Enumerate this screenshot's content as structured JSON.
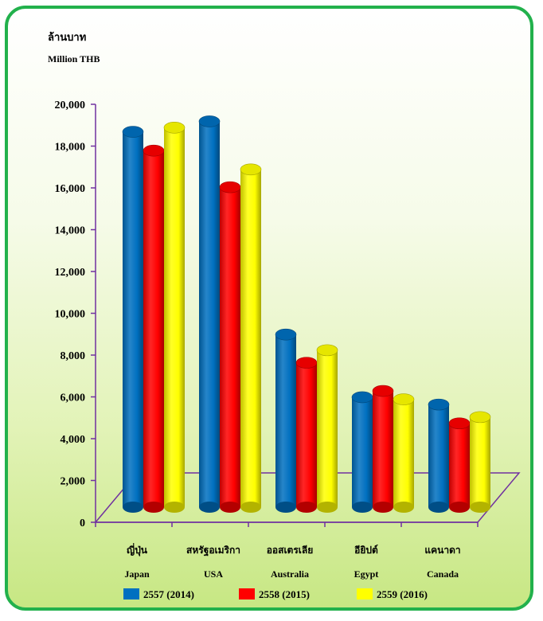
{
  "chart_data": {
    "type": "bar",
    "unit_label_th": "ล้านบาท",
    "unit_label_en": "Million THB",
    "categories": [
      {
        "th": "ญี่ปุ่น",
        "en": "Japan"
      },
      {
        "th": "สหรัฐอเมริกา",
        "en": "USA"
      },
      {
        "th": "ออสเตรเลีย",
        "en": "Australia"
      },
      {
        "th": "อียิปต์",
        "en": "Egypt"
      },
      {
        "th": "แคนาดา",
        "en": "Canada"
      }
    ],
    "series": [
      {
        "name": "2557  (2014)",
        "color": "#0070c0",
        "values": [
          18950,
          19450,
          9250,
          6250,
          5900
        ]
      },
      {
        "name": "2558  (2015)",
        "color": "#ff0000",
        "values": [
          18050,
          16300,
          7900,
          6550,
          5000
        ]
      },
      {
        "name": "2559  (2016)",
        "color": "#ffff00",
        "values": [
          19150,
          17150,
          8500,
          6150,
          5300
        ]
      }
    ],
    "ylim": [
      0,
      20000
    ],
    "y_ticks": [
      "0",
      "2,000",
      "4,000",
      "6,000",
      "8,000",
      "10,000",
      "12,000",
      "14,000",
      "16,000",
      "18,000",
      "20,000"
    ],
    "legend_position": "bottom",
    "grid": false,
    "style": "3d-cylinder",
    "axis_color": "#7030a0"
  }
}
